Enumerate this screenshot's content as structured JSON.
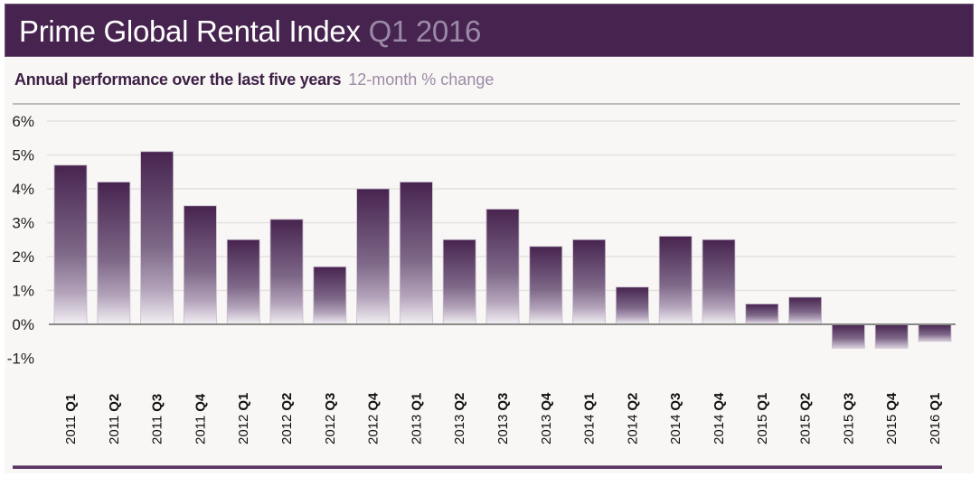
{
  "header": {
    "title": "Prime Global Rental Index",
    "period": "Q1 2016"
  },
  "subheader": {
    "title": "Annual performance over the last five years",
    "unit_note": "12-month % change"
  },
  "colors": {
    "header_bg": "#47244f",
    "bar_top": "#47244f",
    "bar_fade": "#ffffff",
    "accent_light": "#9b8aa6",
    "panel_bg": "#f8f7f5"
  },
  "chart_data": {
    "type": "bar",
    "title": "Annual performance over the last five years",
    "ylabel": "12-month % change",
    "xlabel": "",
    "ylim": [
      -1,
      6
    ],
    "yticks": [
      6,
      5,
      4,
      3,
      2,
      1,
      0,
      -1
    ],
    "ytick_labels": [
      "6%",
      "5%",
      "4%",
      "3%",
      "2%",
      "1%",
      "0%",
      "-1%"
    ],
    "grid": true,
    "legend": "none",
    "categories": [
      {
        "year": "2011",
        "quarter": "Q1"
      },
      {
        "year": "2011",
        "quarter": "Q2"
      },
      {
        "year": "2011",
        "quarter": "Q3"
      },
      {
        "year": "2011",
        "quarter": "Q4"
      },
      {
        "year": "2012",
        "quarter": "Q1"
      },
      {
        "year": "2012",
        "quarter": "Q2"
      },
      {
        "year": "2012",
        "quarter": "Q3"
      },
      {
        "year": "2012",
        "quarter": "Q4"
      },
      {
        "year": "2013",
        "quarter": "Q1"
      },
      {
        "year": "2013",
        "quarter": "Q2"
      },
      {
        "year": "2013",
        "quarter": "Q3"
      },
      {
        "year": "2013",
        "quarter": "Q4"
      },
      {
        "year": "2014",
        "quarter": "Q1"
      },
      {
        "year": "2014",
        "quarter": "Q2"
      },
      {
        "year": "2014",
        "quarter": "Q3"
      },
      {
        "year": "2014",
        "quarter": "Q4"
      },
      {
        "year": "2015",
        "quarter": "Q1"
      },
      {
        "year": "2015",
        "quarter": "Q2"
      },
      {
        "year": "2015",
        "quarter": "Q3"
      },
      {
        "year": "2015",
        "quarter": "Q4"
      },
      {
        "year": "2016",
        "quarter": "Q1"
      }
    ],
    "values": [
      4.7,
      4.2,
      5.1,
      3.5,
      2.5,
      3.1,
      1.7,
      4.0,
      4.2,
      2.5,
      3.4,
      2.3,
      2.5,
      1.1,
      2.6,
      2.5,
      0.6,
      0.8,
      -0.7,
      -0.7,
      -0.5
    ]
  }
}
